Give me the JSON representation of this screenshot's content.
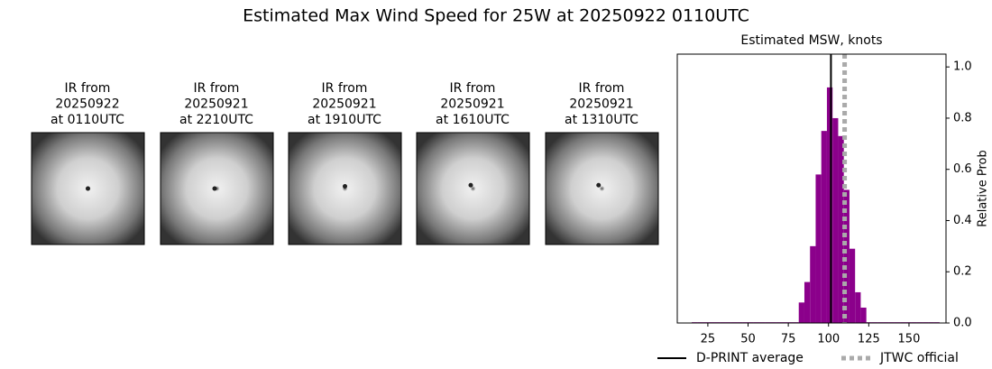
{
  "title": "Estimated Max Wind Speed for 25W at 20250922 0110UTC",
  "panels": [
    {
      "lines": [
        "IR from",
        "20250922",
        "at 0110UTC"
      ]
    },
    {
      "lines": [
        "IR from",
        "20250921",
        "at 2210UTC"
      ]
    },
    {
      "lines": [
        "IR from",
        "20250921",
        "at 1910UTC"
      ]
    },
    {
      "lines": [
        "IR from",
        "20250921",
        "at 1610UTC"
      ]
    },
    {
      "lines": [
        "IR from",
        "20250921",
        "at 1310UTC"
      ]
    }
  ],
  "chart_data": {
    "type": "histogram",
    "title": "Estimated MSW, knots",
    "y_label": "Relative Prob",
    "color": "#8b008b",
    "bins": [
      15,
      18.5,
      22,
      25.5,
      29,
      32.5,
      36,
      39.5,
      43,
      46.5,
      50,
      53.5,
      57,
      60.5,
      64,
      67.5,
      71,
      74.5,
      78,
      81.5,
      85,
      88.5,
      92,
      95.5,
      99,
      102.5,
      106,
      109.5,
      113,
      116.5,
      120,
      123.5,
      127,
      130.5,
      134,
      137.5,
      141,
      144.5,
      148,
      151.5,
      155,
      158.5,
      162,
      165.5,
      169
    ],
    "values": [
      0.003,
      0.003,
      0.003,
      0.003,
      0.003,
      0.003,
      0.003,
      0.003,
      0.003,
      0.003,
      0.003,
      0.003,
      0.003,
      0.003,
      0.003,
      0.003,
      0.003,
      0.003,
      0.003,
      0.08,
      0.16,
      0.3,
      0.58,
      0.75,
      0.92,
      0.8,
      0.73,
      0.52,
      0.29,
      0.12,
      0.06,
      0.003,
      0.003,
      0.003,
      0.003,
      0.003,
      0.003,
      0.003,
      0.003,
      0.003,
      0.003,
      0.003,
      0.003,
      0.003
    ],
    "ref_lines": [
      {
        "name": "D-PRINT average",
        "value": 101.5,
        "color": "#000000",
        "style": "solid"
      },
      {
        "name": "JTWC official",
        "value": 110,
        "color": "#aaaaaa",
        "style": "dotted"
      }
    ],
    "xlim": [
      6,
      173
    ],
    "xticks": [
      25,
      50,
      75,
      100,
      125,
      150
    ],
    "ylim": [
      0,
      1.05
    ],
    "yticks": [
      {
        "value": 0,
        "label": "0.0"
      },
      0.2,
      0.4,
      0.6,
      0.8,
      {
        "value": 1,
        "label": "1.0"
      }
    ],
    "legend": "bottom"
  }
}
